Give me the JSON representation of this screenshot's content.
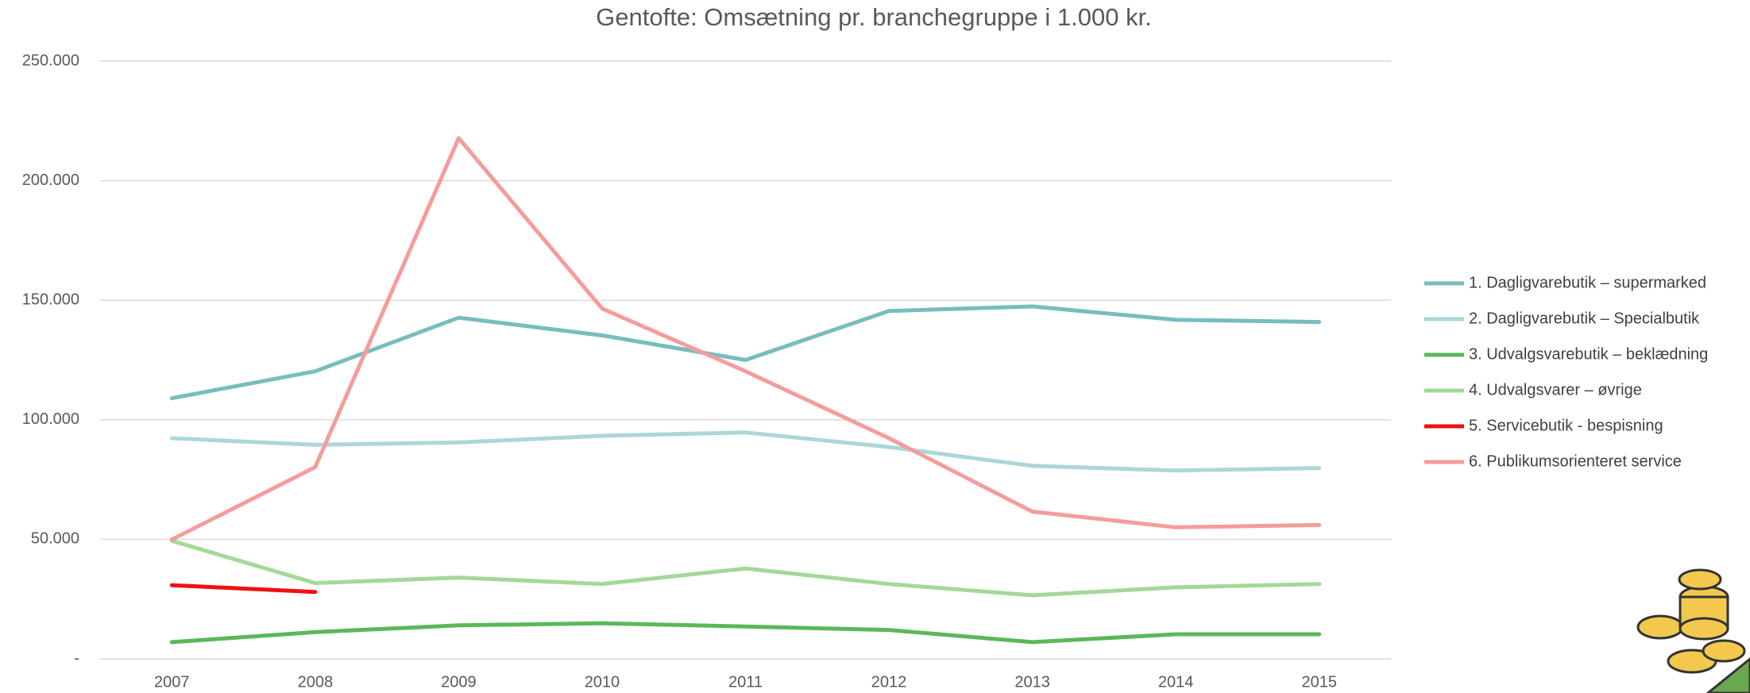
{
  "chart_data": {
    "type": "line",
    "title": "Gentofte: Omsætning pr. branchegruppe i 1.000 kr.",
    "categories": [
      "2007",
      "2008",
      "2009",
      "2010",
      "2011",
      "2012",
      "2013",
      "2014",
      "2015"
    ],
    "series": [
      {
        "name": "1. Dagligvarebutik – supermarked",
        "color": "#78bdbd",
        "values": [
          109000,
          120300,
          142700,
          135300,
          125000,
          145500,
          147400,
          141800,
          140900
        ]
      },
      {
        "name": "2. Dagligvarebutik – Specialbutik",
        "color": "#abd7d7",
        "values": [
          92300,
          89500,
          90500,
          93300,
          94700,
          88600,
          80700,
          78800,
          79800
        ]
      },
      {
        "name": "3. Udvalgsvarebutik – beklædning",
        "color": "#5ab85a",
        "values": [
          7000,
          11200,
          14000,
          14900,
          13500,
          12100,
          7000,
          10300,
          10300
        ]
      },
      {
        "name": "4. Udvalgsvarer – øvrige",
        "color": "#a3d997",
        "values": [
          49400,
          31700,
          34000,
          31300,
          37800,
          31300,
          26600,
          29900,
          31300
        ]
      },
      {
        "name": "5. Servicebutik - bespisning",
        "color": "#ee1111",
        "values": [
          30800,
          28000,
          null,
          null,
          null,
          null,
          null,
          null,
          null
        ]
      },
      {
        "name": "6. Publikumsorienteret service",
        "color": "#f59c9c",
        "values": [
          49900,
          80200,
          217800,
          146500,
          120300,
          92300,
          61600,
          55000,
          56000
        ]
      }
    ],
    "ylim": [
      0,
      250000
    ],
    "yticks": [
      {
        "value": 0,
        "label": "-"
      },
      {
        "value": 50000,
        "label": "50.000"
      },
      {
        "value": 100000,
        "label": "100.000"
      },
      {
        "value": 150000,
        "label": "150.000"
      },
      {
        "value": 200000,
        "label": "200.000"
      },
      {
        "value": 250000,
        "label": "250.000"
      }
    ],
    "grid": true,
    "legend": "right"
  }
}
